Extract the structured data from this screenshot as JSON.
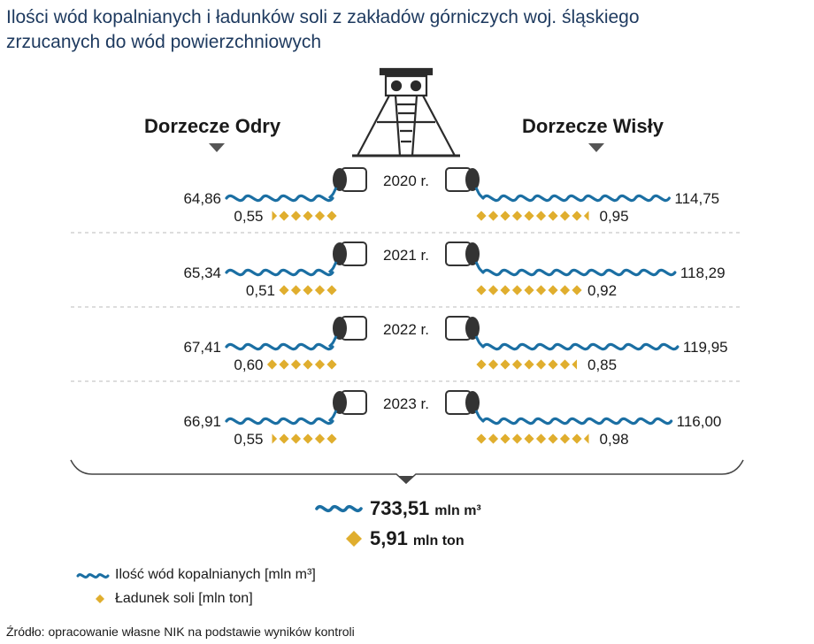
{
  "title_line1": "Ilości wód kopalnianych i ładunków soli z zakładów górniczych woj. śląskiego",
  "title_line2": "zrzucanych do wód powierzchniowych",
  "left_basin": "Dorzecze Odry",
  "right_basin": "Dorzecze Wisły",
  "colors": {
    "water": "#1b6fa3",
    "salt": "#e0ae2e",
    "title": "#1e3a5f",
    "pipe": "#333333",
    "divider": "#bbbbbb"
  },
  "chart_data": {
    "type": "table",
    "years": [
      "2020 r.",
      "2021 r.",
      "2022 r.",
      "2023 r."
    ],
    "series": [
      {
        "name": "Dorzecze Odry",
        "water": [
          "64,86",
          "65,34",
          "67,41",
          "66,91"
        ],
        "water_values": [
          64.86,
          65.34,
          67.41,
          66.91
        ],
        "salt": [
          "0,55",
          "0,51",
          "0,60",
          "0,55"
        ],
        "salt_values": [
          0.55,
          0.51,
          0.6,
          0.55
        ]
      },
      {
        "name": "Dorzecze Wisły",
        "water": [
          "114,75",
          "118,29",
          "119,95",
          "116,00"
        ],
        "water_values": [
          114.75,
          118.29,
          119.95,
          116.0
        ],
        "salt": [
          "0,95",
          "0,92",
          "0,85",
          "0,98"
        ],
        "salt_values": [
          0.95,
          0.92,
          0.85,
          0.98
        ]
      }
    ]
  },
  "totals": {
    "water_value": "733,51",
    "water_unit": "mln m³",
    "salt_value": "5,91",
    "salt_unit": "mln ton"
  },
  "legend": {
    "water": "Ilość wód kopalnianych [mln m³]",
    "salt": "Ładunek soli [mln ton]"
  },
  "source": "Źródło: opracowanie własne NIK na podstawie wyników kontroli"
}
